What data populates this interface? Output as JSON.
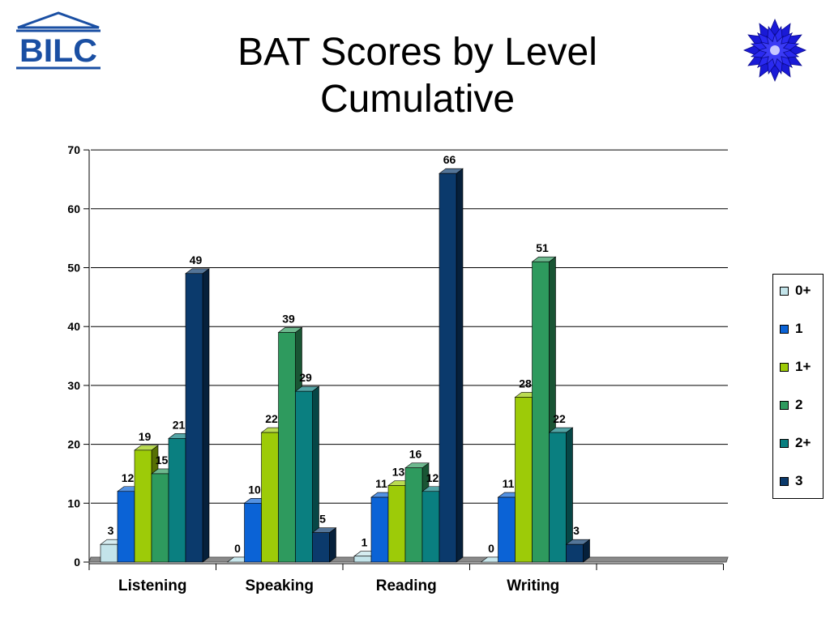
{
  "slide": {
    "title_line1": "BAT Scores by Level",
    "title_line2": "Cumulative",
    "logo_text": "BILC"
  },
  "chart_data": {
    "type": "bar",
    "style": "3d-clustered",
    "categories": [
      "Listening",
      "Speaking",
      "Reading",
      "Writing"
    ],
    "series": [
      {
        "name": "0+",
        "color": "#c3e4ea",
        "values": [
          3,
          0,
          1,
          0
        ]
      },
      {
        "name": "1",
        "color": "#0b63d6",
        "values": [
          12,
          10,
          11,
          11
        ]
      },
      {
        "name": "1+",
        "color": "#9dcb08",
        "values": [
          19,
          22,
          13,
          28
        ]
      },
      {
        "name": "2",
        "color": "#2e9a5e",
        "values": [
          15,
          39,
          16,
          51
        ]
      },
      {
        "name": "2+",
        "color": "#0a7f80",
        "values": [
          21,
          29,
          12,
          22
        ]
      },
      {
        "name": "3",
        "color": "#0b3a6c",
        "values": [
          49,
          5,
          66,
          3
        ]
      }
    ],
    "ylim": [
      0,
      70
    ],
    "yticks": [
      0,
      10,
      20,
      30,
      40,
      50,
      60,
      70
    ],
    "grid": true,
    "legend_position": "right",
    "data_labels": true
  }
}
